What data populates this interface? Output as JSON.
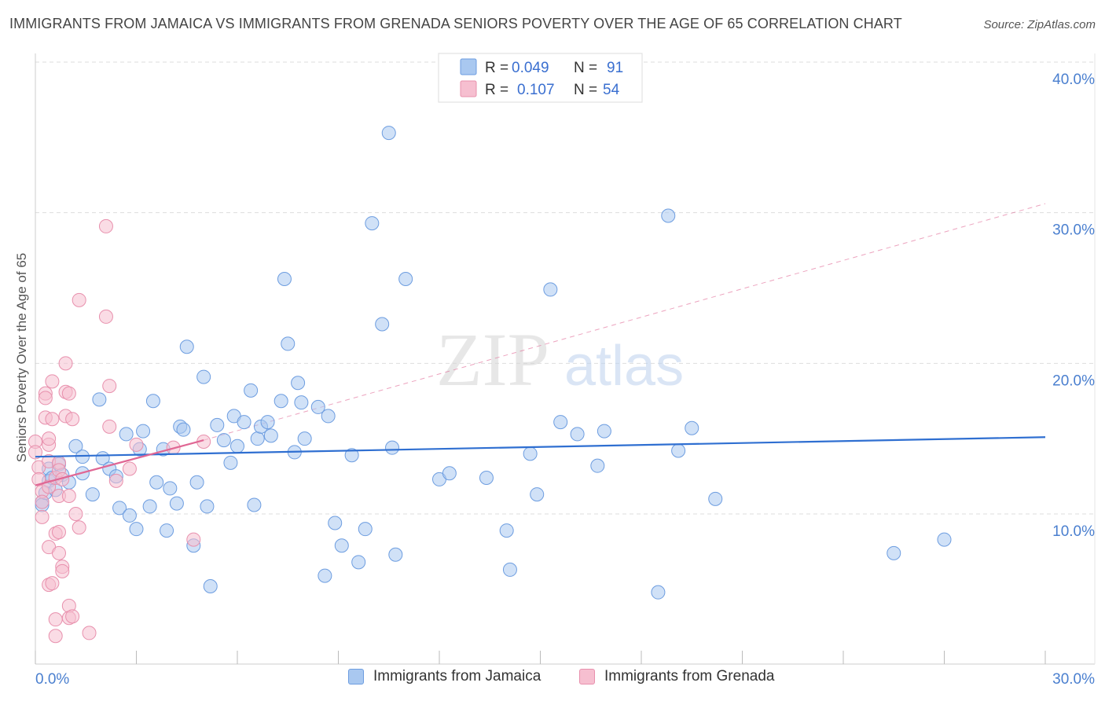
{
  "title": "IMMIGRANTS FROM JAMAICA VS IMMIGRANTS FROM GRENADA SENIORS POVERTY OVER THE AGE OF 65 CORRELATION CHART",
  "source": "Source: ZipAtlas.com",
  "watermark": {
    "zip": "ZIP",
    "atlas": "atlas"
  },
  "colors": {
    "blue_fill": "#a9c8f0",
    "blue_stroke": "#6d9de0",
    "blue_line": "#2f6fd1",
    "pink_fill": "#f6bfd0",
    "pink_stroke": "#e890ad",
    "pink_line": "#e06794",
    "tick_text": "#4a7fcf",
    "grid": "#dddddd"
  },
  "legend_top": [
    {
      "series": "Immigrants from Jamaica",
      "r_label": "R =",
      "r_value": "0.049",
      "n_label": "N =",
      "n_value": "91"
    },
    {
      "series": "Immigrants from Grenada",
      "r_label": "R =",
      "r_value": "0.107",
      "n_label": "N =",
      "n_value": "54"
    }
  ],
  "legend_bottom": [
    "Immigrants from Jamaica",
    "Immigrants from Grenada"
  ],
  "chart_data": {
    "type": "scatter",
    "title": "IMMIGRANTS FROM JAMAICA VS IMMIGRANTS FROM GRENADA SENIORS POVERTY OVER THE AGE OF 65 CORRELATION CHART",
    "xlabel": "",
    "ylabel": "Seniors Poverty Over the Age of 65",
    "xlim": [
      0,
      30
    ],
    "ylim": [
      1.5,
      41
    ],
    "x_tick_labels": [
      {
        "value": 0,
        "label": "0.0%"
      },
      {
        "value": 30,
        "label": "30.0%"
      }
    ],
    "y_tick_labels": [
      {
        "value": 10,
        "label": "10.0%"
      },
      {
        "value": 20,
        "label": "20.0%"
      },
      {
        "value": 30,
        "label": "30.0%"
      },
      {
        "value": 40,
        "label": "40.0%"
      }
    ],
    "x_minor_ticks": [
      0,
      3,
      6,
      9,
      12,
      15,
      18,
      21,
      24,
      27,
      30
    ],
    "grid": true,
    "series": [
      {
        "name": "Immigrants from Jamaica",
        "color": "blue",
        "r": 0.049,
        "n": 91,
        "trend": {
          "x": [
            0,
            30
          ],
          "y": [
            13.8,
            15.1
          ],
          "dashed_extension": false
        },
        "points": [
          [
            0.2,
            10.8
          ],
          [
            0.2,
            10.6
          ],
          [
            0.3,
            11.4
          ],
          [
            0.4,
            13.0
          ],
          [
            0.4,
            12.2
          ],
          [
            0.5,
            12.4
          ],
          [
            0.6,
            11.6
          ],
          [
            0.7,
            13.3
          ],
          [
            0.8,
            12.6
          ],
          [
            1.0,
            12.1
          ],
          [
            1.2,
            14.5
          ],
          [
            1.4,
            13.8
          ],
          [
            1.4,
            12.7
          ],
          [
            1.7,
            11.3
          ],
          [
            1.9,
            17.6
          ],
          [
            2.0,
            13.7
          ],
          [
            2.2,
            13.0
          ],
          [
            2.4,
            12.5
          ],
          [
            2.5,
            10.4
          ],
          [
            2.7,
            15.3
          ],
          [
            2.8,
            9.9
          ],
          [
            3.0,
            9.0
          ],
          [
            3.1,
            14.3
          ],
          [
            3.2,
            15.5
          ],
          [
            3.4,
            10.5
          ],
          [
            3.5,
            17.5
          ],
          [
            3.6,
            12.1
          ],
          [
            3.8,
            14.3
          ],
          [
            3.9,
            8.9
          ],
          [
            4.0,
            11.7
          ],
          [
            4.2,
            10.7
          ],
          [
            4.3,
            15.8
          ],
          [
            4.4,
            15.6
          ],
          [
            4.5,
            21.1
          ],
          [
            4.7,
            7.9
          ],
          [
            4.8,
            12.1
          ],
          [
            5.0,
            19.1
          ],
          [
            5.1,
            10.5
          ],
          [
            5.2,
            5.2
          ],
          [
            5.4,
            15.9
          ],
          [
            5.6,
            14.9
          ],
          [
            5.8,
            13.4
          ],
          [
            5.9,
            16.5
          ],
          [
            6.0,
            14.5
          ],
          [
            6.2,
            16.1
          ],
          [
            6.4,
            18.2
          ],
          [
            6.5,
            10.6
          ],
          [
            6.6,
            15.0
          ],
          [
            6.7,
            15.8
          ],
          [
            6.9,
            16.1
          ],
          [
            7.0,
            15.2
          ],
          [
            7.3,
            17.5
          ],
          [
            7.4,
            25.6
          ],
          [
            7.5,
            21.3
          ],
          [
            7.7,
            14.1
          ],
          [
            7.8,
            18.7
          ],
          [
            7.9,
            17.4
          ],
          [
            8.0,
            15.0
          ],
          [
            8.4,
            17.1
          ],
          [
            8.6,
            5.9
          ],
          [
            8.7,
            16.5
          ],
          [
            8.9,
            9.4
          ],
          [
            9.1,
            7.9
          ],
          [
            9.4,
            13.9
          ],
          [
            9.6,
            6.8
          ],
          [
            9.8,
            9.0
          ],
          [
            10.0,
            29.3
          ],
          [
            10.3,
            22.6
          ],
          [
            10.6,
            14.4
          ],
          [
            10.7,
            7.3
          ],
          [
            11.0,
            25.6
          ],
          [
            12.0,
            12.3
          ],
          [
            12.3,
            12.7
          ],
          [
            13.4,
            12.4
          ],
          [
            14.0,
            8.9
          ],
          [
            14.1,
            6.3
          ],
          [
            14.7,
            14.0
          ],
          [
            14.9,
            11.3
          ],
          [
            15.3,
            24.9
          ],
          [
            15.6,
            16.1
          ],
          [
            16.1,
            15.3
          ],
          [
            16.7,
            13.2
          ],
          [
            16.9,
            15.5
          ],
          [
            18.5,
            4.8
          ],
          [
            18.8,
            29.8
          ],
          [
            19.1,
            14.2
          ],
          [
            19.5,
            15.7
          ],
          [
            20.2,
            11.0
          ],
          [
            25.5,
            7.4
          ],
          [
            27.0,
            8.3
          ],
          [
            10.5,
            35.3
          ]
        ]
      },
      {
        "name": "Immigrants from Grenada",
        "color": "pink",
        "r": 0.107,
        "n": 54,
        "trend": {
          "x": [
            0,
            5.0
          ],
          "y": [
            11.9,
            14.9
          ],
          "dashed_extension": true,
          "extension_to": [
            30,
            30.6
          ]
        },
        "points": [
          [
            0.0,
            14.8
          ],
          [
            0.0,
            14.1
          ],
          [
            0.1,
            13.1
          ],
          [
            0.1,
            12.3
          ],
          [
            0.2,
            11.5
          ],
          [
            0.2,
            10.8
          ],
          [
            0.2,
            9.8
          ],
          [
            0.3,
            18.0
          ],
          [
            0.3,
            17.7
          ],
          [
            0.3,
            16.4
          ],
          [
            0.4,
            14.6
          ],
          [
            0.4,
            15.0
          ],
          [
            0.4,
            13.5
          ],
          [
            0.4,
            11.8
          ],
          [
            0.4,
            7.8
          ],
          [
            0.4,
            5.3
          ],
          [
            0.5,
            18.8
          ],
          [
            0.5,
            16.3
          ],
          [
            0.5,
            5.4
          ],
          [
            0.6,
            12.4
          ],
          [
            0.6,
            8.7
          ],
          [
            0.6,
            3.0
          ],
          [
            0.6,
            1.9
          ],
          [
            0.7,
            13.4
          ],
          [
            0.7,
            12.9
          ],
          [
            0.7,
            11.2
          ],
          [
            0.7,
            8.8
          ],
          [
            0.7,
            7.4
          ],
          [
            0.8,
            12.3
          ],
          [
            0.8,
            6.5
          ],
          [
            0.8,
            6.2
          ],
          [
            0.9,
            20.0
          ],
          [
            0.9,
            16.5
          ],
          [
            0.9,
            18.1
          ],
          [
            1.0,
            18.0
          ],
          [
            1.0,
            11.2
          ],
          [
            1.0,
            3.9
          ],
          [
            1.0,
            3.1
          ],
          [
            1.1,
            16.3
          ],
          [
            1.1,
            3.2
          ],
          [
            1.2,
            10.0
          ],
          [
            1.3,
            24.2
          ],
          [
            1.3,
            9.1
          ],
          [
            1.6,
            2.1
          ],
          [
            2.1,
            23.1
          ],
          [
            2.1,
            29.1
          ],
          [
            2.2,
            15.8
          ],
          [
            2.2,
            18.5
          ],
          [
            2.4,
            12.2
          ],
          [
            2.8,
            13.0
          ],
          [
            3.0,
            14.6
          ],
          [
            4.1,
            14.4
          ],
          [
            4.7,
            8.3
          ],
          [
            5.0,
            14.8
          ]
        ]
      }
    ]
  }
}
